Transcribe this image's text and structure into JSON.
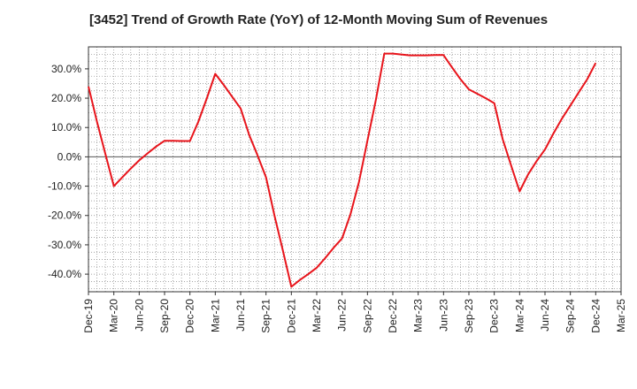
{
  "chart_data": {
    "type": "line",
    "title": "[3452]  Trend of Growth Rate (YoY) of 12-Month Moving Sum of Revenues",
    "xlabel": "",
    "ylabel": "",
    "x_ticks": [
      "Dec-19",
      "Mar-20",
      "Jun-20",
      "Sep-20",
      "Dec-20",
      "Mar-21",
      "Jun-21",
      "Sep-21",
      "Dec-21",
      "Mar-22",
      "Jun-22",
      "Sep-22",
      "Dec-22",
      "Mar-23",
      "Jun-23",
      "Sep-23",
      "Dec-23",
      "Mar-24",
      "Jun-24",
      "Sep-24",
      "Dec-24",
      "Mar-25"
    ],
    "y_ticks": [
      30,
      20,
      10,
      0,
      -10,
      -20,
      -30,
      -40
    ],
    "y_tick_labels": [
      "30.0%",
      "20.0%",
      "10.0%",
      "0.0%",
      "-10.0%",
      "-20.0%",
      "-30.0%",
      "-40.0%"
    ],
    "ylim": [
      -46,
      37.5
    ],
    "grid": true,
    "series": [
      {
        "color": "#e8141b",
        "x": [
          "Dec-19",
          "Jan-20",
          "Feb-20",
          "Mar-20",
          "Apr-20",
          "May-20",
          "Jun-20",
          "Jul-20",
          "Aug-20",
          "Sep-20",
          "Oct-20",
          "Nov-20",
          "Dec-20",
          "Jan-21",
          "Feb-21",
          "Mar-21",
          "Apr-21",
          "May-21",
          "Jun-21",
          "Jul-21",
          "Aug-21",
          "Sep-21",
          "Oct-21",
          "Nov-21",
          "Dec-21",
          "Jan-22",
          "Feb-22",
          "Mar-22",
          "Apr-22",
          "May-22",
          "Jun-22",
          "Jul-22",
          "Aug-22",
          "Sep-22",
          "Oct-22",
          "Nov-22",
          "Dec-22",
          "Jan-23",
          "Feb-23",
          "Mar-23",
          "Apr-23",
          "May-23",
          "Jun-23",
          "Jul-23",
          "Aug-23",
          "Sep-23",
          "Oct-23",
          "Nov-23",
          "Dec-23",
          "Jan-24",
          "Feb-24",
          "Mar-24",
          "Apr-24",
          "May-24",
          "Jun-24",
          "Jul-24",
          "Aug-24",
          "Sep-24",
          "Oct-24",
          "Nov-24",
          "Dec-24"
        ],
        "values": [
          24.0,
          12.0,
          1.0,
          -10.0,
          -7.0,
          -4.0,
          -1.2,
          1.2,
          3.5,
          5.5,
          5.5,
          5.4,
          5.4,
          12.0,
          20.0,
          28.3,
          24.5,
          20.5,
          16.5,
          7.5,
          0.5,
          -7.0,
          -20.0,
          -32.0,
          -44.3,
          -42.0,
          -40.0,
          -37.8,
          -34.5,
          -31.0,
          -27.8,
          -19.5,
          -8.5,
          5.5,
          19.5,
          35.2,
          35.2,
          34.9,
          34.6,
          34.6,
          34.6,
          34.7,
          34.7,
          30.5,
          26.5,
          23.0,
          21.5,
          20.0,
          18.3,
          6.0,
          -3.0,
          -11.8,
          -6.0,
          -1.5,
          2.5,
          8.0,
          13.0,
          17.5,
          22.0,
          26.5,
          32.0
        ]
      }
    ]
  }
}
